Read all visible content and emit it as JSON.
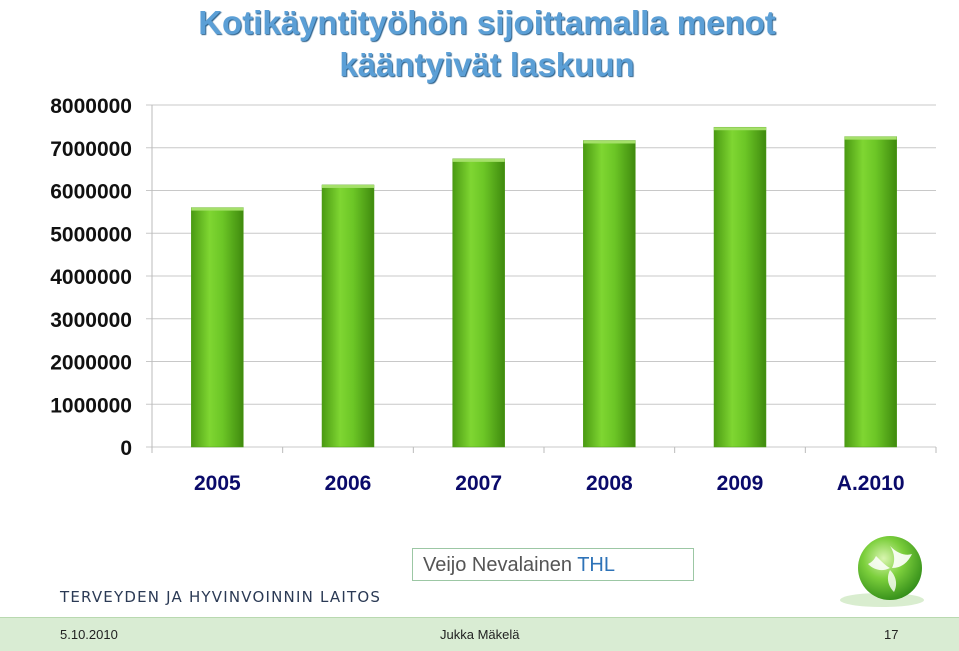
{
  "chart_data": {
    "type": "bar",
    "title_lines": [
      "Kotikäyntityöhön sijoittamalla menot",
      "kääntyivät laskuun"
    ],
    "categories": [
      "2005",
      "2006",
      "2007",
      "2008",
      "2009",
      "A.2010"
    ],
    "values": [
      5600000,
      6130000,
      6740000,
      7170000,
      7480000,
      7260000
    ],
    "yticks": [
      "0",
      "1000000",
      "2000000",
      "3000000",
      "4000000",
      "5000000",
      "6000000",
      "7000000",
      "8000000"
    ],
    "ylim": [
      0,
      8000000
    ],
    "grid": true,
    "legend": "none",
    "bar_color": "#66c020"
  },
  "slide": {
    "organization": "TERVEYDEN JA HYVINVOINNIN LAITOS",
    "author_name": "Veijo Nevalainen",
    "author_org": "THL",
    "footer": {
      "date": "5.10.2010",
      "presenter": "Jukka Mäkelä",
      "page": "17"
    }
  }
}
